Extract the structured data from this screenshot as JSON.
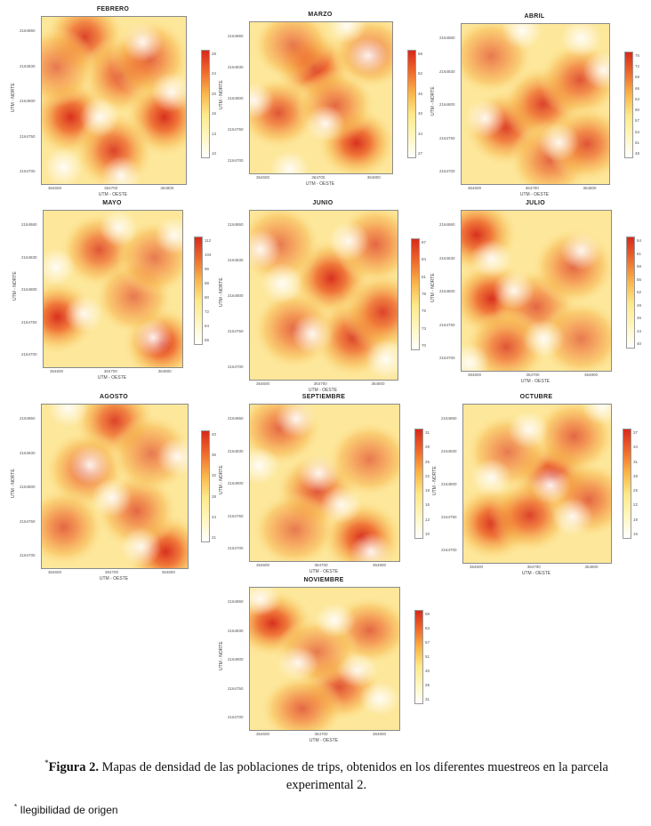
{
  "chart_data": [
    {
      "type": "heatmap",
      "title": "FEBRERO",
      "ylabel": "UTM - NORTE",
      "xlabel": "UTM - OESTE",
      "yticks": [
        "2164860",
        "2164830",
        "2164800",
        "2164750",
        "2164700"
      ],
      "xticks": [
        "364600",
        "364700",
        "364800"
      ],
      "colorbar_ticks": [
        "28",
        "24",
        "20",
        "16",
        "13",
        "10"
      ],
      "colors": {
        "low": "#ffffff",
        "high": "#d62a1c"
      }
    },
    {
      "type": "heatmap",
      "title": "MARZO",
      "ylabel": "UTM - NORTE",
      "xlabel": "UTM - OESTE",
      "yticks": [
        "2164860",
        "2164830",
        "2164800",
        "2164750",
        "2164700"
      ],
      "xticks": [
        "364600",
        "364700",
        "364800"
      ],
      "colorbar_ticks": [
        "58",
        "52",
        "46",
        "40",
        "34",
        "27"
      ],
      "colors": {
        "low": "#ffffff",
        "high": "#d62a1c"
      }
    },
    {
      "type": "heatmap",
      "title": "ABRIL",
      "ylabel": "UTM - NORTE",
      "xlabel": "UTM - OESTE",
      "yticks": [
        "2164860",
        "2164830",
        "2164800",
        "2164750",
        "2164700"
      ],
      "xticks": [
        "364600",
        "364700",
        "364800"
      ],
      "colorbar_ticks": [
        "75",
        "72",
        "69",
        "66",
        "63",
        "60",
        "57",
        "54",
        "51",
        "48"
      ],
      "colors": {
        "low": "#ffffff",
        "high": "#d62a1c"
      }
    },
    {
      "type": "heatmap",
      "title": "MAYO",
      "ylabel": "UTM - NORTE",
      "xlabel": "UTM - OESTE",
      "yticks": [
        "2164860",
        "2164830",
        "2164800",
        "2164750",
        "2164700"
      ],
      "xticks": [
        "364600",
        "364700",
        "364800"
      ],
      "colorbar_ticks": [
        "112",
        "104",
        "96",
        "88",
        "80",
        "72",
        "64",
        "56"
      ],
      "colors": {
        "low": "#ffffff",
        "high": "#d62a1c"
      }
    },
    {
      "type": "heatmap",
      "title": "JUNIO",
      "ylabel": "UTM - NORTE",
      "xlabel": "UTM - OESTE",
      "yticks": [
        "2164860",
        "2164830",
        "2164800",
        "2164750",
        "2164700"
      ],
      "xticks": [
        "364600",
        "364700",
        "364800"
      ],
      "colorbar_ticks": [
        "87",
        "84",
        "81",
        "78",
        "75",
        "73",
        "70"
      ],
      "colors": {
        "low": "#ffffff",
        "high": "#d62a1c"
      }
    },
    {
      "type": "heatmap",
      "title": "JULIO",
      "ylabel": "UTM - NORTE",
      "xlabel": "UTM - OESTE",
      "yticks": [
        "2164860",
        "2164830",
        "2164800",
        "2164750",
        "2164700"
      ],
      "xticks": [
        "364600",
        "364700",
        "364800"
      ],
      "colorbar_ticks": [
        "64",
        "61",
        "58",
        "55",
        "52",
        "49",
        "46",
        "43",
        "40"
      ],
      "colors": {
        "low": "#ffffff",
        "high": "#d62a1c"
      }
    },
    {
      "type": "heatmap",
      "title": "AGOSTO",
      "ylabel": "UTM - NORTE",
      "xlabel": "UTM - OESTE",
      "yticks": [
        "2164860",
        "2164830",
        "2164800",
        "2164750",
        "2164700"
      ],
      "xticks": [
        "364600",
        "364700",
        "364800"
      ],
      "colorbar_ticks": [
        "40",
        "36",
        "32",
        "28",
        "24",
        "21"
      ],
      "colors": {
        "low": "#ffffff",
        "high": "#d62a1c"
      }
    },
    {
      "type": "heatmap",
      "title": "SEPTIEMBRE",
      "ylabel": "UTM - NORTE",
      "xlabel": "UTM - OESTE",
      "yticks": [
        "2164860",
        "2164830",
        "2164800",
        "2164750",
        "2164700"
      ],
      "xticks": [
        "364600",
        "364700",
        "364800"
      ],
      "colorbar_ticks": [
        "31",
        "28",
        "25",
        "22",
        "19",
        "16",
        "13",
        "10"
      ],
      "colors": {
        "low": "#ffffff",
        "high": "#d62a1c"
      }
    },
    {
      "type": "heatmap",
      "title": "OCTUBRE",
      "ylabel": "UTM - NORTE",
      "xlabel": "UTM - OESTE",
      "yticks": [
        "2164860",
        "2164830",
        "2164800",
        "2164750",
        "2164700"
      ],
      "xticks": [
        "364600",
        "364700",
        "364800"
      ],
      "colorbar_ticks": [
        "37",
        "34",
        "31",
        "28",
        "25",
        "22",
        "19",
        "16"
      ],
      "colors": {
        "low": "#ffffff",
        "high": "#d62a1c"
      }
    },
    {
      "type": "heatmap",
      "title": "NOVIEMBRE",
      "ylabel": "UTM - NORTE",
      "xlabel": "UTM - OESTE",
      "yticks": [
        "2164860",
        "2164830",
        "2164800",
        "2164750",
        "2164700"
      ],
      "xticks": [
        "364600",
        "364700",
        "364800"
      ],
      "colorbar_ticks": [
        "69",
        "63",
        "57",
        "51",
        "45",
        "39",
        "31"
      ],
      "colors": {
        "low": "#ffffff",
        "high": "#d62a1c"
      }
    }
  ],
  "caption": {
    "star": "*",
    "label": "Figura 2.",
    "text": " Mapas de densidad de las poblaciones de trips, obtenidos en los diferentes muestreos en la parcela experimental 2."
  },
  "note": {
    "star": "*",
    "text": " Ilegibilidad de origen"
  }
}
